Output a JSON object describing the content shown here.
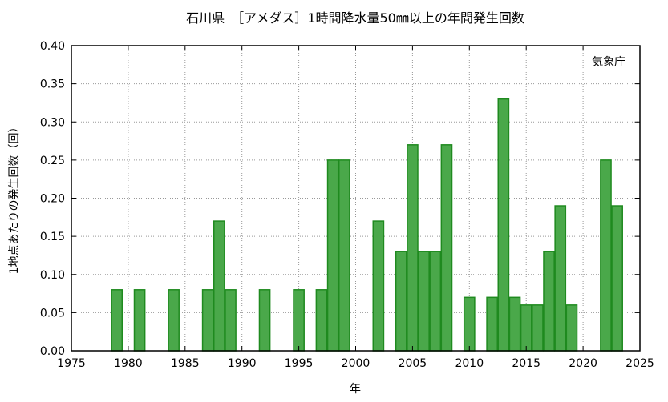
{
  "chart_data": {
    "type": "bar",
    "title": "石川県　［アメダス］1時間降水量50㎜以上の年間発生回数",
    "xlabel": "年",
    "ylabel": "1地点あたりの発生回数（回）",
    "source": "気象庁",
    "xlim": [
      1975,
      2025
    ],
    "ylim": [
      0,
      0.4
    ],
    "xticks": [
      1975,
      1980,
      1985,
      1990,
      1995,
      2000,
      2005,
      2010,
      2015,
      2020,
      2025
    ],
    "yticks": [
      0.0,
      0.05,
      0.1,
      0.15,
      0.2,
      0.25,
      0.3,
      0.35,
      0.4
    ],
    "grid": true,
    "bar_color": "#4aa84a",
    "bar_edge_color": "#1f8a1f",
    "x": [
      1976,
      1977,
      1978,
      1979,
      1980,
      1981,
      1982,
      1983,
      1984,
      1985,
      1986,
      1987,
      1988,
      1989,
      1990,
      1991,
      1992,
      1993,
      1994,
      1995,
      1996,
      1997,
      1998,
      1999,
      2000,
      2001,
      2002,
      2003,
      2004,
      2005,
      2006,
      2007,
      2008,
      2009,
      2010,
      2011,
      2012,
      2013,
      2014,
      2015,
      2016,
      2017,
      2018,
      2019,
      2020,
      2021,
      2022,
      2023
    ],
    "values": [
      0,
      0,
      0,
      0.08,
      0,
      0.08,
      0,
      0,
      0.08,
      0,
      0,
      0.08,
      0.17,
      0.08,
      0,
      0,
      0.08,
      0,
      0,
      0.08,
      0,
      0.08,
      0.25,
      0.25,
      0,
      0,
      0.17,
      0,
      0.13,
      0.27,
      0.13,
      0.13,
      0.27,
      0,
      0.07,
      0,
      0.07,
      0.33,
      0.07,
      0.06,
      0.06,
      0.13,
      0.19,
      0.06,
      0,
      0,
      0.25,
      0.19
    ]
  }
}
